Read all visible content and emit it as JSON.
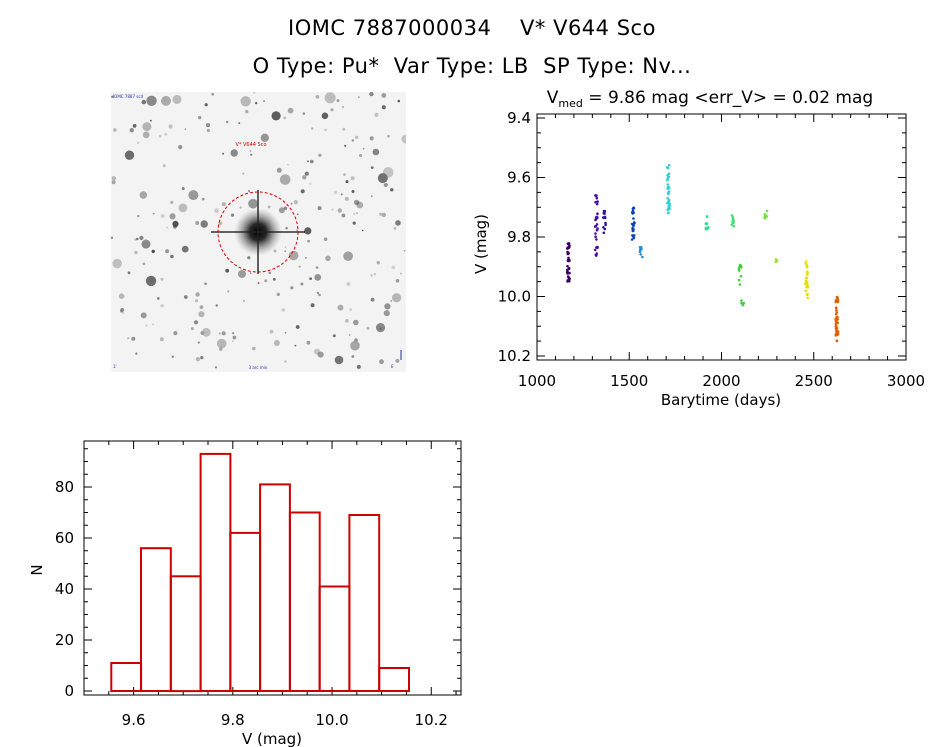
{
  "header": {
    "title_line1": "IOMC 7887000034    V* V644 Sco",
    "title_line2": "O Type: Pu*  Var Type: LB  SP Type: Nv..."
  },
  "stamp": {
    "object_label": "V* V644 Sco",
    "corner_tl": "IOMC 7887 scd",
    "corner_bl": "1'",
    "corner_br": "E",
    "bottom_center": "3 arc min"
  },
  "colors": {
    "histogram": "#cc0000",
    "axes": "#000000",
    "circle": "#dd0000"
  },
  "chart_data": [
    {
      "type": "scatter",
      "title_prefix": "V",
      "title_sub": "med",
      "title_rest": " = 9.86 mag <err_V> = 0.02 mag",
      "xlabel": "Barytime (days)",
      "ylabel": "V (mag)",
      "xlim": [
        1000,
        3000
      ],
      "ylim": [
        10.2,
        9.4
      ],
      "x_ticks": [
        "1000",
        "1500",
        "2000",
        "2500",
        "3000"
      ],
      "y_ticks": [
        "9.4",
        "9.6",
        "9.8",
        "10.0",
        "10.2"
      ],
      "clusters": [
        {
          "x": 1170,
          "y_min": 9.82,
          "y_max": 9.95,
          "color": "#3b0060",
          "n": 40
        },
        {
          "x": 1322,
          "y_min": 9.66,
          "y_max": 9.87,
          "color": "#4a10a0",
          "n": 30
        },
        {
          "x": 1365,
          "y_min": 9.71,
          "y_max": 9.79,
          "color": "#3010a0",
          "n": 12
        },
        {
          "x": 1522,
          "y_min": 9.7,
          "y_max": 9.81,
          "color": "#1040c0",
          "n": 25
        },
        {
          "x": 1565,
          "y_min": 9.82,
          "y_max": 9.87,
          "color": "#2090d0",
          "n": 8
        },
        {
          "x": 1712,
          "y_min": 9.55,
          "y_max": 9.73,
          "color": "#30d0d0",
          "n": 35
        },
        {
          "x": 1922,
          "y_min": 9.73,
          "y_max": 9.78,
          "color": "#30e090",
          "n": 10
        },
        {
          "x": 2062,
          "y_min": 9.72,
          "y_max": 9.78,
          "color": "#40e070",
          "n": 10
        },
        {
          "x": 2100,
          "y_min": 9.88,
          "y_max": 9.96,
          "color": "#40d040",
          "n": 10
        },
        {
          "x": 2115,
          "y_min": 10.01,
          "y_max": 10.03,
          "color": "#40d040",
          "n": 4
        },
        {
          "x": 2240,
          "y_min": 9.71,
          "y_max": 9.74,
          "color": "#70e040",
          "n": 8
        },
        {
          "x": 2300,
          "y_min": 9.87,
          "y_max": 9.89,
          "color": "#a0e030",
          "n": 4
        },
        {
          "x": 2462,
          "y_min": 9.87,
          "y_max": 10.01,
          "color": "#e8e000",
          "n": 25
        },
        {
          "x": 2625,
          "y_min": 10.0,
          "y_max": 10.15,
          "color": "#e06000",
          "n": 40
        }
      ]
    },
    {
      "type": "bar",
      "subtype": "histogram",
      "xlabel": "V (mag)",
      "ylabel": "N",
      "xlim": [
        9.5,
        10.26
      ],
      "ylim": [
        -2,
        97
      ],
      "x_ticks": [
        "9.6",
        "9.8",
        "10.0",
        "10.2"
      ],
      "y_ticks": [
        "0",
        "20",
        "40",
        "60",
        "80"
      ],
      "bin_width": 0.06,
      "bin_starts": [
        9.555,
        9.615,
        9.675,
        9.735,
        9.795,
        9.855,
        9.915,
        9.975,
        10.035,
        10.095
      ],
      "values": [
        11,
        56,
        45,
        93,
        62,
        81,
        70,
        41,
        69,
        9
      ]
    }
  ]
}
